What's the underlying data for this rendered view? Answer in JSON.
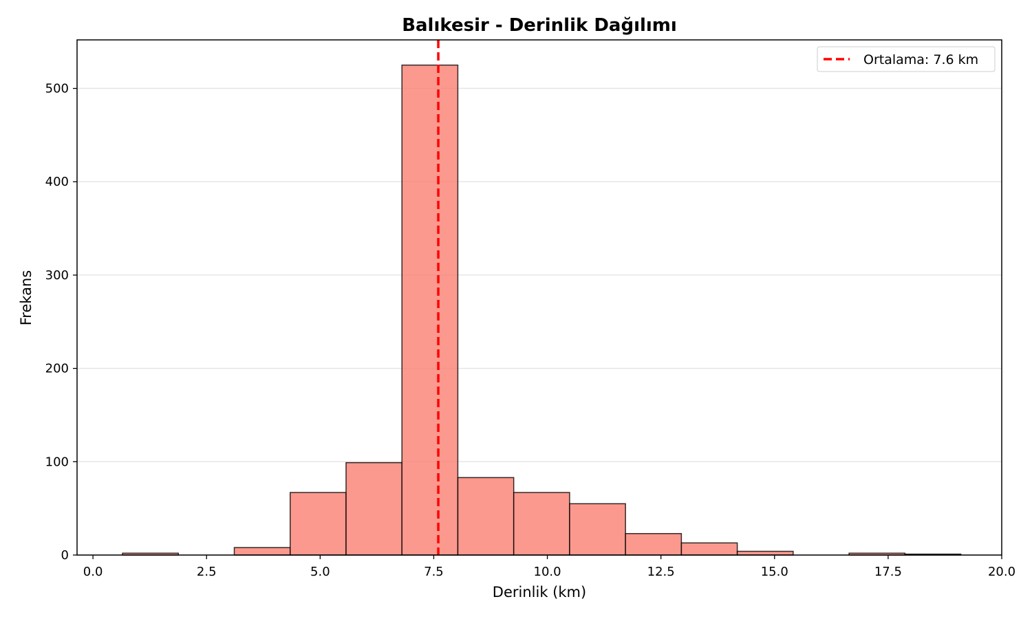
{
  "chart_data": {
    "type": "bar",
    "title": "Balıkesir - Derinlik Dağılımı",
    "xlabel": "Derinlik (km)",
    "ylabel": "Frekans",
    "xlim": [
      -0.35,
      20.0
    ],
    "ylim": [
      0,
      552
    ],
    "x_ticks": [
      0.0,
      2.5,
      5.0,
      7.5,
      10.0,
      12.5,
      15.0,
      17.5,
      20.0
    ],
    "x_tick_labels": [
      "0.0",
      "2.5",
      "5.0",
      "7.5",
      "10.0",
      "12.5",
      "15.0",
      "17.5",
      "20.0"
    ],
    "y_ticks": [
      0,
      100,
      200,
      300,
      400,
      500
    ],
    "y_tick_labels": [
      "0",
      "100",
      "200",
      "300",
      "400",
      "500"
    ],
    "grid": "y",
    "bins": [
      {
        "x0": 0.65,
        "x1": 1.88,
        "value": 2
      },
      {
        "x0": 1.88,
        "x1": 3.11,
        "value": 0
      },
      {
        "x0": 3.11,
        "x1": 4.34,
        "value": 8
      },
      {
        "x0": 4.34,
        "x1": 5.57,
        "value": 67
      },
      {
        "x0": 5.57,
        "x1": 6.8,
        "value": 99
      },
      {
        "x0": 6.8,
        "x1": 8.03,
        "value": 525
      },
      {
        "x0": 8.03,
        "x1": 9.26,
        "value": 83
      },
      {
        "x0": 9.26,
        "x1": 10.49,
        "value": 67
      },
      {
        "x0": 10.49,
        "x1": 11.72,
        "value": 55
      },
      {
        "x0": 11.72,
        "x1": 12.95,
        "value": 23
      },
      {
        "x0": 12.95,
        "x1": 14.18,
        "value": 13
      },
      {
        "x0": 14.18,
        "x1": 15.41,
        "value": 4
      },
      {
        "x0": 15.41,
        "x1": 16.64,
        "value": 0
      },
      {
        "x0": 16.64,
        "x1": 17.87,
        "value": 2
      },
      {
        "x0": 17.87,
        "x1": 19.1,
        "value": 1
      }
    ],
    "mean_line": {
      "x": 7.6,
      "label": "Ortalama: 7.6 km",
      "color": "#ff0000"
    },
    "legend_position": "top-right",
    "bar_color": "#fa8072",
    "bar_edge_color": "#000000"
  }
}
